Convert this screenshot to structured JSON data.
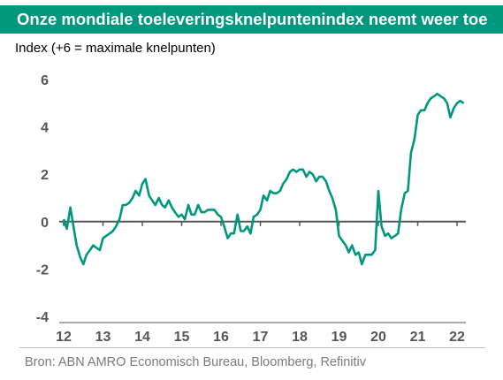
{
  "header": {
    "title": "Onze mondiale toeleveringsknelpuntenindex neemt weer toe"
  },
  "chart_data": {
    "type": "line",
    "title": "Onze mondiale toeleveringsknelpuntenindex neemt weer toe",
    "ylabel": "Index (+6 = maximale knelpunten)",
    "xlabel": "",
    "ylim": [
      -4,
      6
    ],
    "yticks": [
      6,
      4,
      2,
      0,
      -2,
      -4
    ],
    "xticks": [
      "12",
      "13",
      "14",
      "15",
      "16",
      "17",
      "18",
      "19",
      "20",
      "21",
      "22"
    ],
    "xlim": [
      2012.0,
      2022.25
    ],
    "grid": false,
    "line_color": "#00977f",
    "zero_line_color": "#555555",
    "series": [
      {
        "x": [
          2012.0,
          2012.08,
          2012.17,
          2012.25,
          2012.33,
          2012.42,
          2012.5,
          2012.58,
          2012.67,
          2012.75,
          2012.83,
          2012.92,
          2013.0,
          2013.08,
          2013.17,
          2013.25,
          2013.33,
          2013.42,
          2013.5,
          2013.58,
          2013.67,
          2013.75,
          2013.83,
          2013.92,
          2014.0,
          2014.08,
          2014.17,
          2014.25,
          2014.33,
          2014.42,
          2014.5,
          2014.58,
          2014.67,
          2014.75,
          2014.83,
          2014.92,
          2015.0,
          2015.08,
          2015.17,
          2015.25,
          2015.33,
          2015.42,
          2015.5,
          2015.58,
          2015.67,
          2015.75,
          2015.83,
          2015.92,
          2016.0,
          2016.08,
          2016.17,
          2016.25,
          2016.33,
          2016.42,
          2016.5,
          2016.58,
          2016.67,
          2016.75,
          2016.83,
          2016.92,
          2017.0,
          2017.08,
          2017.17,
          2017.25,
          2017.33,
          2017.42,
          2017.5,
          2017.58,
          2017.67,
          2017.75,
          2017.83,
          2017.92,
          2018.0,
          2018.08,
          2018.17,
          2018.25,
          2018.33,
          2018.42,
          2018.5,
          2018.58,
          2018.67,
          2018.75,
          2018.83,
          2018.92,
          2019.0,
          2019.08,
          2019.17,
          2019.25,
          2019.33,
          2019.42,
          2019.5,
          2019.58,
          2019.67,
          2019.75,
          2019.83,
          2019.92,
          2020.0,
          2020.08,
          2020.17,
          2020.25,
          2020.33,
          2020.42,
          2020.5,
          2020.58,
          2020.67,
          2020.75,
          2020.83,
          2020.92,
          2021.0,
          2021.08,
          2021.17,
          2021.25,
          2021.33,
          2021.42,
          2021.5,
          2021.58,
          2021.67,
          2021.75,
          2021.83,
          2021.92,
          2022.0,
          2022.08,
          2022.17
        ],
        "values": [
          0.1,
          -0.3,
          0.6,
          -0.2,
          -1.0,
          -1.5,
          -1.8,
          -1.4,
          -1.2,
          -1.0,
          -1.1,
          -1.2,
          -0.7,
          -0.6,
          -0.5,
          -0.4,
          -0.2,
          0.1,
          0.7,
          0.7,
          0.8,
          1.0,
          1.3,
          1.1,
          1.6,
          1.8,
          1.1,
          0.9,
          0.7,
          1.0,
          0.7,
          0.6,
          0.9,
          0.6,
          0.4,
          0.2,
          0.3,
          0.1,
          0.7,
          0.3,
          0.3,
          0.7,
          0.4,
          0.4,
          0.5,
          0.5,
          0.5,
          0.3,
          0.2,
          -0.2,
          -0.7,
          -0.5,
          -0.5,
          0.3,
          -0.4,
          -0.4,
          -0.2,
          -0.5,
          0.2,
          0.3,
          0.5,
          1.1,
          0.9,
          1.3,
          1.2,
          1.2,
          1.3,
          1.6,
          1.8,
          2.1,
          2.2,
          2.1,
          2.2,
          2.2,
          1.9,
          2.1,
          2.0,
          1.7,
          1.9,
          1.9,
          1.7,
          1.3,
          1.0,
          0.5,
          -0.6,
          -0.8,
          -1.0,
          -1.3,
          -1.0,
          -1.4,
          -1.3,
          -1.8,
          -1.4,
          -1.4,
          -1.4,
          -1.2,
          1.3,
          -0.2,
          -0.6,
          -0.5,
          -0.7,
          -0.6,
          -0.5,
          0.5,
          1.2,
          1.3,
          2.9,
          3.5,
          4.5,
          4.7,
          4.7,
          5.0,
          5.2,
          5.3,
          5.4,
          5.3,
          5.2,
          5.0,
          4.4,
          4.8,
          5.0,
          5.1,
          5.0
        ]
      }
    ]
  },
  "footer": {
    "source": "Bron: ABN AMRO Economisch Bureau, Bloomberg, Refinitiv"
  }
}
